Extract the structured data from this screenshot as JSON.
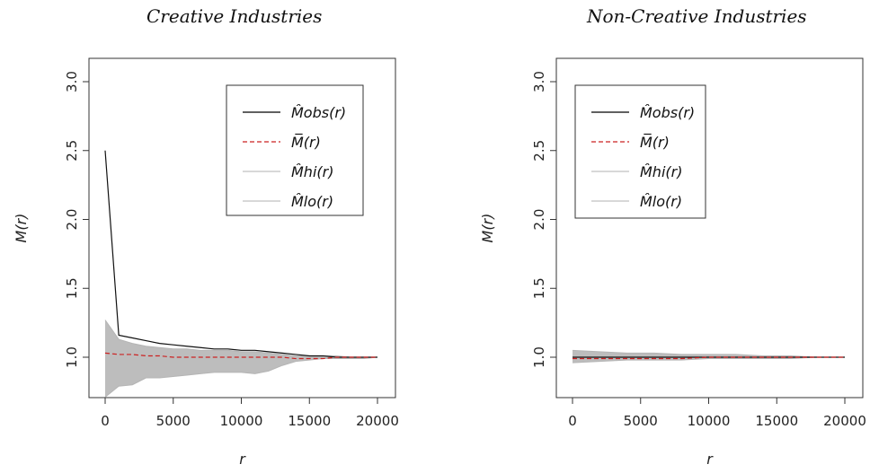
{
  "chart_data": [
    {
      "type": "line",
      "title": "Creative Industries",
      "xlabel": "r",
      "ylabel": "M(r)",
      "xlim": [
        0,
        20000
      ],
      "ylim": [
        0.7,
        3.0
      ],
      "xticks": [
        0,
        5000,
        10000,
        15000,
        20000
      ],
      "yticks": [
        "1.0",
        "1.5",
        "2.0",
        "2.5",
        "3.0"
      ],
      "legend": {
        "position": "top-right",
        "entries": [
          {
            "label": "M̂obs(r)",
            "color": "#000000",
            "style": "solid"
          },
          {
            "label": "M̅(r)",
            "color": "#cc2222",
            "style": "dashed"
          },
          {
            "label": "M̂hi(r)",
            "color": "#c0c0c0",
            "style": "solid"
          },
          {
            "label": "M̂lo(r)",
            "color": "#c0c0c0",
            "style": "solid"
          }
        ]
      },
      "x": [
        0,
        1000,
        2000,
        3000,
        4000,
        5000,
        6000,
        7000,
        8000,
        9000,
        10000,
        11000,
        12000,
        13000,
        14000,
        15000,
        16000,
        17000,
        18000,
        19000,
        20000
      ],
      "series": [
        {
          "name": "M̂obs(r)",
          "values": [
            2.5,
            1.16,
            1.14,
            1.12,
            1.1,
            1.09,
            1.08,
            1.07,
            1.06,
            1.06,
            1.05,
            1.05,
            1.04,
            1.03,
            1.02,
            1.01,
            1.01,
            1.0,
            1.0,
            1.0,
            1.0
          ]
        },
        {
          "name": "M̅(r)",
          "values": [
            1.03,
            1.02,
            1.02,
            1.01,
            1.01,
            1.0,
            1.0,
            1.0,
            1.0,
            1.0,
            1.0,
            1.0,
            1.0,
            1.0,
            0.99,
            0.99,
            0.99,
            1.0,
            1.0,
            1.0,
            1.0
          ]
        },
        {
          "name": "M̂hi(r)",
          "values": [
            1.27,
            1.13,
            1.1,
            1.08,
            1.07,
            1.06,
            1.06,
            1.05,
            1.05,
            1.05,
            1.04,
            1.04,
            1.03,
            1.02,
            1.01,
            1.01,
            1.01,
            1.01,
            1.0,
            1.0,
            1.0
          ]
        },
        {
          "name": "M̂lo(r)",
          "values": [
            0.71,
            0.79,
            0.8,
            0.85,
            0.85,
            0.86,
            0.87,
            0.88,
            0.89,
            0.89,
            0.89,
            0.88,
            0.9,
            0.94,
            0.97,
            0.98,
            0.99,
            0.99,
            0.99,
            0.99,
            1.0
          ]
        }
      ]
    },
    {
      "type": "line",
      "title": "Non-Creative Industries",
      "xlabel": "r",
      "ylabel": "M(r)",
      "xlim": [
        0,
        20000
      ],
      "ylim": [
        0.7,
        3.0
      ],
      "xticks": [
        0,
        5000,
        10000,
        15000,
        20000
      ],
      "yticks": [
        "1.0",
        "1.5",
        "2.0",
        "2.5",
        "3.0"
      ],
      "legend": {
        "position": "top-left",
        "entries": [
          {
            "label": "M̂obs(r)",
            "color": "#000000",
            "style": "solid"
          },
          {
            "label": "M̅(r)",
            "color": "#cc2222",
            "style": "dashed"
          },
          {
            "label": "M̂hi(r)",
            "color": "#c0c0c0",
            "style": "solid"
          },
          {
            "label": "M̂lo(r)",
            "color": "#c0c0c0",
            "style": "solid"
          }
        ]
      },
      "x": [
        0,
        2000,
        4000,
        6000,
        8000,
        10000,
        12000,
        14000,
        16000,
        18000,
        20000
      ],
      "series": [
        {
          "name": "M̂obs(r)",
          "values": [
            1.0,
            1.0,
            1.0,
            1.0,
            1.0,
            1.0,
            1.0,
            1.0,
            1.0,
            1.0,
            1.0
          ]
        },
        {
          "name": "M̅(r)",
          "values": [
            0.99,
            0.99,
            0.99,
            0.99,
            0.99,
            1.0,
            1.0,
            1.0,
            1.0,
            1.0,
            1.0
          ]
        },
        {
          "name": "M̂hi(r)",
          "values": [
            1.05,
            1.04,
            1.03,
            1.03,
            1.02,
            1.02,
            1.02,
            1.01,
            1.01,
            1.0,
            1.0
          ]
        },
        {
          "name": "M̂lo(r)",
          "values": [
            0.96,
            0.97,
            0.98,
            0.98,
            0.98,
            0.99,
            0.99,
            0.99,
            0.99,
            1.0,
            1.0
          ]
        }
      ]
    }
  ]
}
